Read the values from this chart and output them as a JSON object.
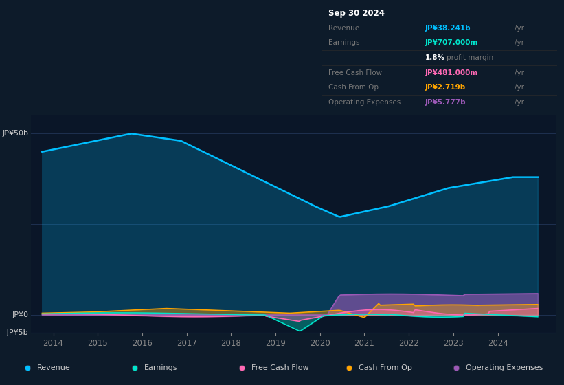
{
  "background_color": "#0d1b2a",
  "plot_bg_color": "#0a1628",
  "ylim": [
    -5,
    55
  ],
  "xlim_start": 2013.5,
  "xlim_end": 2025.3,
  "xtick_years": [
    2014,
    2015,
    2016,
    2017,
    2018,
    2019,
    2020,
    2021,
    2022,
    2023,
    2024
  ],
  "colors": {
    "revenue": "#00bfff",
    "earnings": "#00e5cc",
    "free_cash_flow": "#ff69b4",
    "cash_from_op": "#ffa500",
    "operating_expenses": "#9b59b6"
  },
  "legend": [
    {
      "label": "Revenue",
      "color": "#00bfff"
    },
    {
      "label": "Earnings",
      "color": "#00e5cc"
    },
    {
      "label": "Free Cash Flow",
      "color": "#ff69b4"
    },
    {
      "label": "Cash From Op",
      "color": "#ffa500"
    },
    {
      "label": "Operating Expenses",
      "color": "#9b59b6"
    }
  ]
}
